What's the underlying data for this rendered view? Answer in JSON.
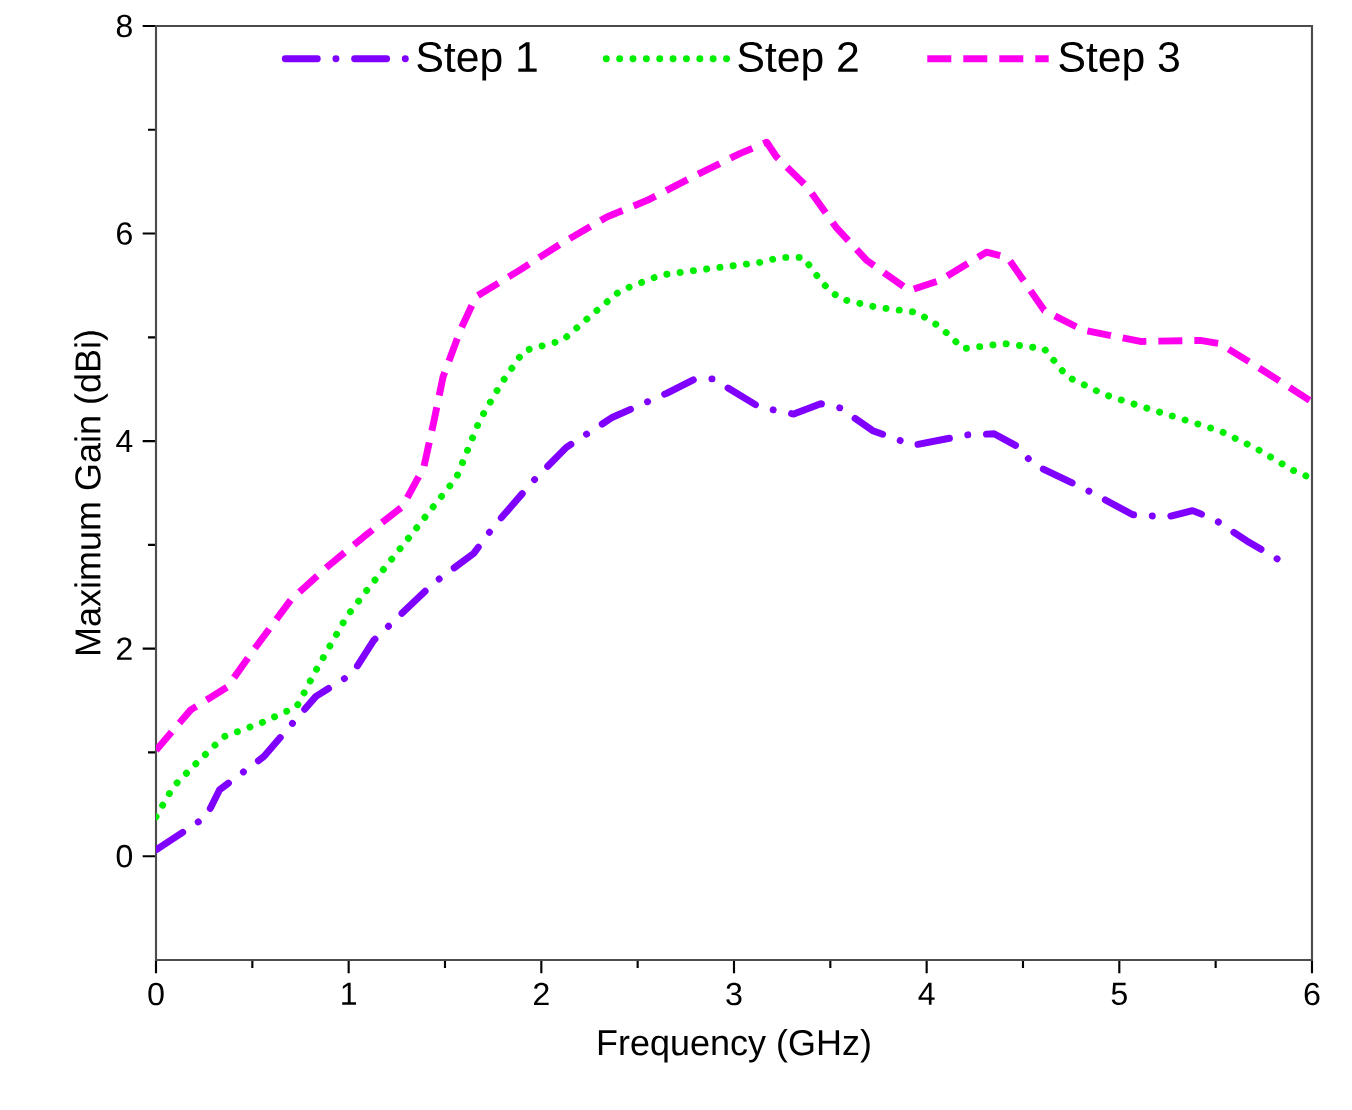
{
  "chart_data": {
    "type": "line",
    "xlabel": "Frequency (GHz)",
    "ylabel": "Maximum Gain (dBi)",
    "xlim": [
      0,
      6
    ],
    "ylim": [
      -1,
      8
    ],
    "xticks": [
      0,
      1,
      2,
      3,
      4,
      5,
      6
    ],
    "yticks": [
      0,
      2,
      4,
      6,
      8
    ],
    "grid": false,
    "legend": "top",
    "series": [
      {
        "name": "Step 1",
        "color": "#7f00ff",
        "line_style": "dashdot",
        "x": [
          0,
          0.26,
          0.33,
          0.56,
          0.75,
          0.83,
          1.02,
          1.13,
          1.44,
          1.65,
          1.75,
          1.96,
          2.13,
          2.37,
          2.65,
          2.79,
          2.89,
          3.13,
          3.31,
          3.45,
          3.55,
          3.72,
          3.93,
          4.21,
          4.35,
          4.48,
          4.55,
          4.83,
          5.07,
          5.25,
          5.38,
          5.49,
          5.66,
          5.86
        ],
        "values": [
          0.06,
          0.38,
          0.64,
          0.96,
          1.37,
          1.54,
          1.76,
          2.08,
          2.63,
          2.92,
          3.17,
          3.62,
          3.94,
          4.23,
          4.46,
          4.59,
          4.6,
          4.33,
          4.26,
          4.36,
          4.32,
          4.1,
          3.96,
          4.06,
          4.07,
          3.94,
          3.78,
          3.53,
          3.29,
          3.27,
          3.33,
          3.25,
          3.04,
          2.82
        ]
      },
      {
        "name": "Step 2",
        "color": "#00ee00",
        "line_style": "dotted",
        "x": [
          0,
          0.09,
          0.19,
          0.35,
          0.54,
          0.73,
          0.83,
          0.99,
          1.11,
          1.3,
          1.44,
          1.56,
          1.61,
          1.68,
          1.79,
          1.91,
          2.11,
          2.27,
          2.41,
          2.62,
          2.82,
          3.13,
          3.24,
          3.36,
          3.46,
          3.55,
          3.74,
          3.95,
          4.07,
          4.19,
          4.4,
          4.61,
          4.73,
          4.92,
          5.12,
          5.33,
          5.52,
          5.71,
          5.9,
          6.0
        ],
        "values": [
          0.38,
          0.67,
          0.86,
          1.15,
          1.28,
          1.44,
          1.79,
          2.31,
          2.6,
          3.04,
          3.37,
          3.65,
          3.88,
          4.2,
          4.55,
          4.87,
          4.97,
          5.23,
          5.45,
          5.6,
          5.65,
          5.72,
          5.77,
          5.77,
          5.52,
          5.37,
          5.29,
          5.24,
          5.1,
          4.89,
          4.94,
          4.89,
          4.62,
          4.45,
          4.33,
          4.21,
          4.1,
          3.93,
          3.72,
          3.64
        ]
      },
      {
        "name": "Step 3",
        "color": "#ff00ee",
        "line_style": "dashed",
        "x": [
          0,
          0.18,
          0.37,
          0.52,
          0.7,
          0.89,
          1.08,
          1.28,
          1.39,
          1.44,
          1.49,
          1.58,
          1.66,
          1.89,
          2.1,
          2.34,
          2.55,
          2.79,
          3.03,
          3.17,
          3.22,
          3.38,
          3.53,
          3.69,
          3.91,
          4.07,
          4.31,
          4.42,
          4.61,
          4.81,
          5.11,
          5.42,
          5.52,
          5.73,
          5.99
        ],
        "values": [
          1.02,
          1.41,
          1.63,
          2.02,
          2.47,
          2.79,
          3.08,
          3.37,
          3.75,
          4.17,
          4.62,
          5.07,
          5.39,
          5.65,
          5.9,
          6.16,
          6.32,
          6.55,
          6.77,
          6.88,
          6.74,
          6.45,
          6.06,
          5.74,
          5.45,
          5.55,
          5.82,
          5.77,
          5.26,
          5.07,
          4.96,
          4.97,
          4.94,
          4.7,
          4.39
        ]
      }
    ]
  }
}
